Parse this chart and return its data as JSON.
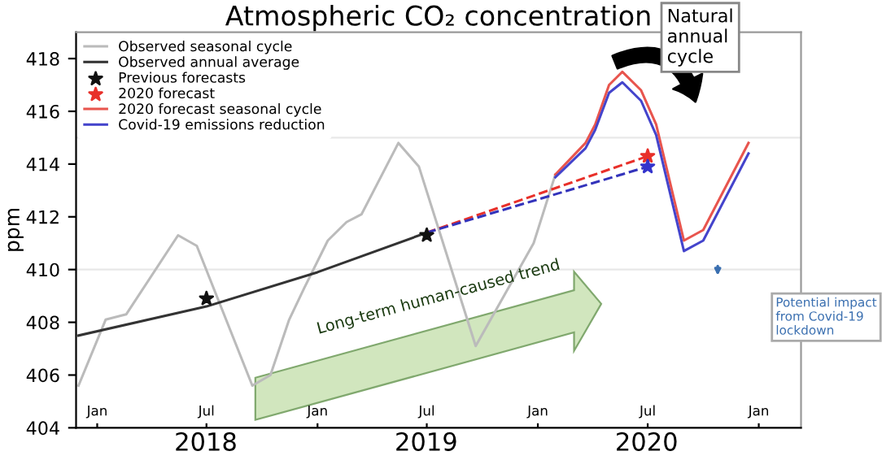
{
  "chart_data": {
    "type": "line",
    "title": "Atmospheric CO₂ concentration",
    "ylabel": "ppm",
    "xlim": [
      "2017-11-27",
      "2021-03-12"
    ],
    "ylim": [
      404,
      419
    ],
    "yticks": [
      404,
      406,
      408,
      410,
      412,
      414,
      416,
      418
    ],
    "xticks": [
      {
        "value": "2018-01-01",
        "label": "Jan"
      },
      {
        "value": "2018-07-01",
        "label": "Jul"
      },
      {
        "value": "2019-01-01",
        "label": "Jan"
      },
      {
        "value": "2019-07-01",
        "label": "Jul"
      },
      {
        "value": "2020-01-01",
        "label": "Jan"
      },
      {
        "value": "2020-07-01",
        "label": "Jul"
      },
      {
        "value": "2021-01-01",
        "label": "Jan"
      }
    ],
    "legend": "top left",
    "grid": false,
    "ref_lines": [
      {
        "axis": "y",
        "value": 410,
        "color": "#e8e8e8"
      },
      {
        "axis": "y",
        "value": 415,
        "color": "#e8e8e8"
      }
    ],
    "series": [
      {
        "name": "Observed seasonal cycle",
        "color": "#bbbbbb",
        "x": [
          "2017-12-01",
          "2018-01-15",
          "2018-02-18",
          "2018-05-15",
          "2018-06-15",
          "2018-09-15",
          "2018-10-15",
          "2018-11-15",
          "2018-12-10",
          "2019-01-18",
          "2019-02-18",
          "2019-03-15",
          "2019-05-15",
          "2019-06-18",
          "2019-09-20",
          "2019-12-25",
          "2020-01-30"
        ],
        "values": [
          405.6,
          408.1,
          408.3,
          411.3,
          410.9,
          405.6,
          406.0,
          408.1,
          409.3,
          411.1,
          411.8,
          412.1,
          414.8,
          413.9,
          407.1,
          411.0,
          413.6
        ]
      },
      {
        "name": "Observed annual average",
        "color": "#333333",
        "x": [
          "2017-12-01",
          "2018-07-01",
          "2019-01-01",
          "2019-07-01"
        ],
        "values": [
          407.5,
          408.6,
          409.9,
          411.4
        ]
      },
      {
        "name": "Previous forecasts",
        "type": "scatter",
        "marker": "star",
        "color": "#111111",
        "x": [
          "2018-07-01",
          "2019-07-01"
        ],
        "values": [
          408.9,
          411.3
        ]
      },
      {
        "name": "2020 forecast",
        "type": "scatter",
        "marker": "star",
        "color": "#e8302a",
        "x": [
          "2020-07-01"
        ],
        "values": [
          414.3
        ]
      },
      {
        "name": "2020 forecast seasonal cycle",
        "color": "#e8554e",
        "x": [
          "2020-01-30",
          "2020-03-20",
          "2020-04-05",
          "2020-04-28",
          "2020-05-20",
          "2020-06-20",
          "2020-07-15",
          "2020-08-30",
          "2020-10-01",
          "2020-12-15"
        ],
        "values": [
          413.6,
          414.8,
          415.5,
          417.0,
          417.5,
          416.8,
          415.5,
          411.1,
          411.5,
          414.8
        ]
      },
      {
        "name": "Covid-19 emissions reduction",
        "color": "#4444cc",
        "x": [
          "2020-01-30",
          "2020-03-20",
          "2020-04-05",
          "2020-04-28",
          "2020-05-20",
          "2020-06-20",
          "2020-07-15",
          "2020-08-30",
          "2020-10-01",
          "2020-12-15"
        ],
        "values": [
          413.5,
          414.6,
          415.3,
          416.7,
          417.1,
          416.4,
          415.1,
          410.7,
          411.1,
          414.4
        ]
      },
      {
        "line_style": "dashed",
        "color": "#e8302a",
        "x": [
          "2019-07-01",
          "2020-07-01"
        ],
        "values": [
          411.4,
          414.3
        ]
      },
      {
        "line_style": "dashed",
        "color": "#3333bb",
        "x": [
          "2019-07-01",
          "2020-07-01"
        ],
        "values": [
          411.4,
          413.9
        ]
      },
      {
        "type": "scatter",
        "marker": "star",
        "color": "#3333cc",
        "x": [
          "2020-07-01"
        ],
        "values": [
          413.9
        ]
      }
    ],
    "annotations": [
      "Natural annual cycle",
      "Long-term human-caused trend",
      "Potential impact from Covid-19 lockdown",
      "2018",
      "2019",
      "2020"
    ]
  }
}
